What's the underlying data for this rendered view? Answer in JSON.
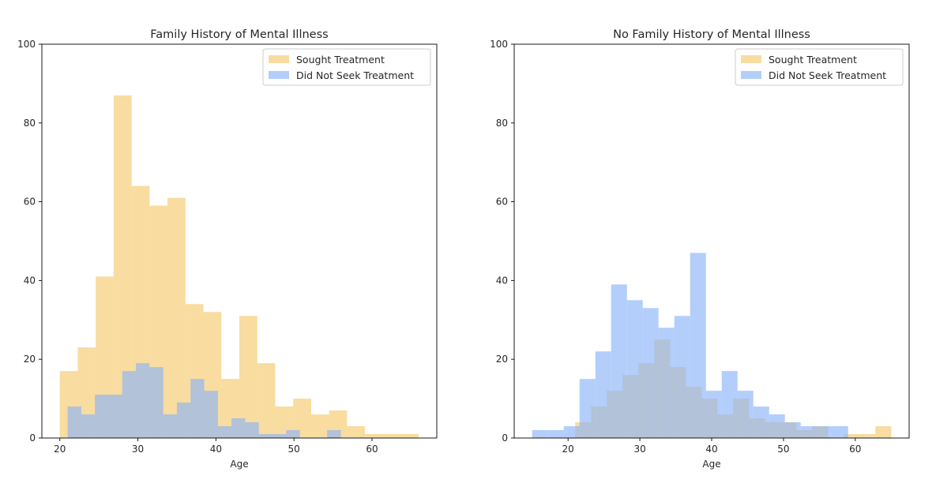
{
  "chart_data": [
    {
      "type": "bar",
      "title": "Family History of Mental Illness",
      "xlabel": "Age",
      "ylabel": "",
      "xlim": [
        17.7,
        68.3
      ],
      "ylim": [
        0,
        100
      ],
      "xticks": [
        20,
        30,
        40,
        50,
        60
      ],
      "yticks": [
        0,
        20,
        40,
        60,
        80,
        100
      ],
      "grid": false,
      "legend": "top-right",
      "series": [
        {
          "name": "Sought Treatment",
          "color": "#f5d080",
          "opacity": 0.75,
          "bin_edges": [
            20,
            22.3,
            24.6,
            26.9,
            29.2,
            31.5,
            33.8,
            36.1,
            38.4,
            40.7,
            43,
            45.3,
            47.6,
            49.9,
            52.2,
            54.5,
            56.8,
            59.1,
            61.4,
            63.7,
            66
          ],
          "values": [
            17,
            23,
            41,
            87,
            64,
            59,
            61,
            34,
            32,
            15,
            31,
            19,
            8,
            10,
            6,
            7,
            3,
            1,
            1,
            1
          ]
        },
        {
          "name": "Did Not Seek Treatment",
          "color": "#8ab4f8",
          "opacity": 0.65,
          "bin_edges": [
            21,
            22.75,
            24.5,
            26.25,
            28,
            29.75,
            31.5,
            33.25,
            35,
            36.75,
            38.5,
            40.25,
            42,
            43.75,
            45.5,
            47.25,
            49,
            50.75,
            52.5,
            54.25,
            56
          ],
          "values": [
            8,
            6,
            11,
            11,
            17,
            19,
            18,
            6,
            9,
            15,
            12,
            3,
            5,
            4,
            1,
            1,
            2,
            0,
            0,
            2
          ]
        }
      ]
    },
    {
      "type": "bar",
      "title": "No Family History of Mental Illness",
      "xlabel": "Age",
      "ylabel": "",
      "xlim": [
        12.5,
        67.5
      ],
      "ylim": [
        0,
        100
      ],
      "xticks": [
        20,
        30,
        40,
        50,
        60
      ],
      "yticks": [
        0,
        20,
        40,
        60,
        80,
        100
      ],
      "grid": false,
      "legend": "top-right",
      "series": [
        {
          "name": "Sought Treatment",
          "color": "#f5d080",
          "opacity": 0.75,
          "bin_edges": [
            21,
            23.2,
            25.4,
            27.6,
            29.8,
            32,
            34.2,
            36.4,
            38.6,
            40.8,
            43,
            45.2,
            47.4,
            49.6,
            51.8,
            54,
            56.2,
            58.4,
            60.6,
            62.8,
            65
          ],
          "values": [
            4,
            8,
            12,
            16,
            19,
            25,
            18,
            13,
            10,
            6,
            10,
            5,
            4,
            4,
            2,
            3,
            0,
            1,
            1,
            3
          ]
        },
        {
          "name": "Did Not Seek Treatment",
          "color": "#8ab4f8",
          "opacity": 0.65,
          "bin_edges": [
            15,
            17.2,
            19.4,
            21.6,
            23.8,
            26,
            28.2,
            30.4,
            32.6,
            34.8,
            37,
            39.2,
            41.4,
            43.6,
            45.8,
            48,
            50.2,
            52.4,
            54.6,
            56.8,
            59
          ],
          "values": [
            2,
            2,
            3,
            15,
            22,
            39,
            35,
            33,
            28,
            31,
            47,
            12,
            17,
            12,
            8,
            6,
            4,
            3,
            3,
            3
          ]
        }
      ]
    }
  ]
}
